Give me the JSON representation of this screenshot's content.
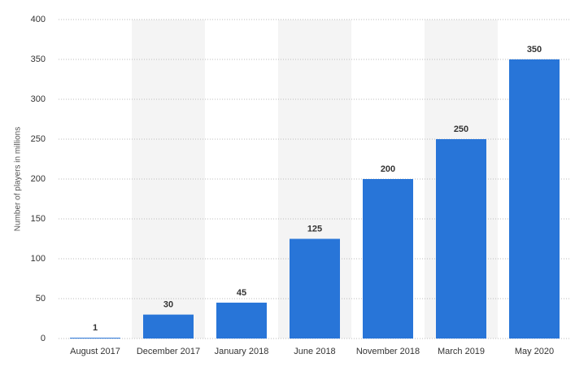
{
  "chart_data": {
    "type": "bar",
    "y_label": "Number of players in millions",
    "categories": [
      "August 2017",
      "December 2017",
      "January 2018",
      "June 2018",
      "November 2018",
      "March 2019",
      "May 2020"
    ],
    "values": [
      1,
      30,
      45,
      125,
      200,
      250,
      350
    ],
    "color": "#2875d8",
    "ylim": [
      0,
      400
    ],
    "yticks": [
      0,
      50,
      100,
      150,
      200,
      250,
      300,
      350,
      400
    ],
    "grid": true,
    "alternate_bands": true,
    "data_labels": true
  }
}
